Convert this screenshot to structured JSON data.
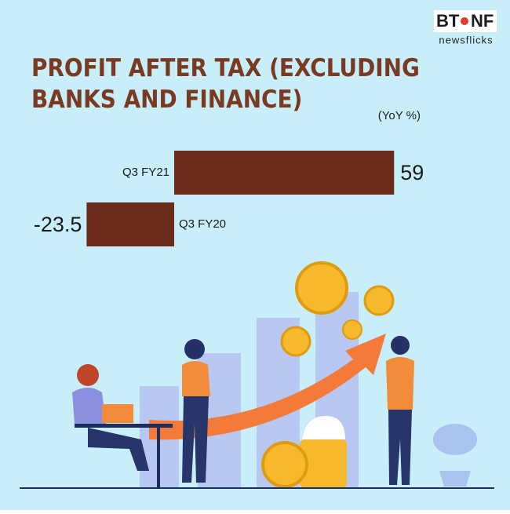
{
  "brand": {
    "left": "BT",
    "right": "NF",
    "tagline": "newsflicks"
  },
  "chart_data": {
    "type": "bar",
    "orientation": "horizontal",
    "title": "PROFIT AFTER TAX (EXCLUDING BANKS AND FINANCE)",
    "subtitle": "(YoY %)",
    "categories": [
      "Q3 FY21",
      "Q3 FY20"
    ],
    "values": [
      59,
      -23.5
    ],
    "color": "#6b2b1a"
  }
}
